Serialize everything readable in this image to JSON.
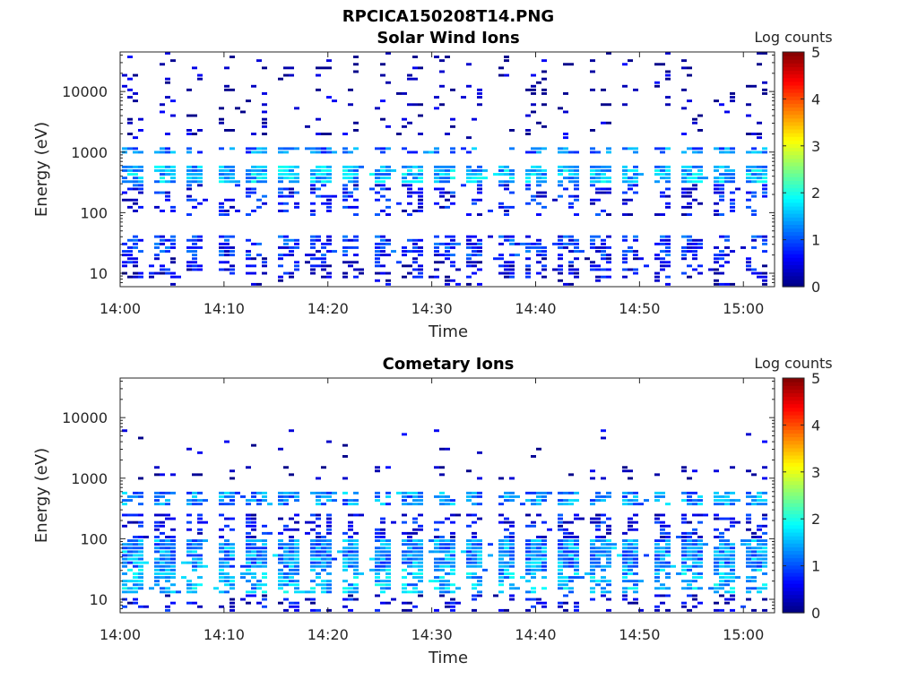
{
  "figure": {
    "title": "RPCICA150208T14.PNG"
  },
  "chart_data": [
    {
      "type": "heatmap",
      "title": "Solar Wind Ions",
      "xlabel": "Time",
      "ylabel": "Energy (eV)",
      "x_ticks": [
        "14:00",
        "14:10",
        "14:20",
        "14:30",
        "14:40",
        "14:50",
        "15:00"
      ],
      "x_range": [
        "14:00",
        "15:03"
      ],
      "y_scale": "log",
      "y_ticks": [
        "10",
        "100",
        "1000",
        "10000"
      ],
      "y_range": [
        6,
        45000
      ],
      "colorbar": {
        "label": "Log counts",
        "ticks": [
          "0",
          "1",
          "2",
          "3",
          "4",
          "5"
        ],
        "range": [
          0,
          5
        ],
        "colormap": "jet"
      },
      "sweep_period_min": 3,
      "bands": [
        {
          "e_min": 300,
          "e_max": 560,
          "log_counts_typical": 1.5,
          "coverage": 0.9
        },
        {
          "e_min": 900,
          "e_max": 1200,
          "log_counts_typical": 1.2,
          "coverage": 0.7
        },
        {
          "e_min": 180,
          "e_max": 300,
          "log_counts_typical": 0.7,
          "coverage": 0.45
        },
        {
          "e_min": 90,
          "e_max": 180,
          "log_counts_typical": 0.6,
          "coverage": 0.35
        },
        {
          "e_min": 18,
          "e_max": 45,
          "log_counts_typical": 0.8,
          "coverage": 0.6
        },
        {
          "e_min": 8,
          "e_max": 18,
          "log_counts_typical": 0.5,
          "coverage": 0.45
        },
        {
          "e_min": 6,
          "e_max": 8,
          "log_counts_typical": 0.3,
          "coverage": 0.15
        },
        {
          "e_min": 1500,
          "e_max": 45000,
          "log_counts_typical": 0.2,
          "coverage": 0.12
        }
      ]
    },
    {
      "type": "heatmap",
      "title": "Cometary Ions",
      "xlabel": "Time",
      "ylabel": "Energy (eV)",
      "x_ticks": [
        "14:00",
        "14:10",
        "14:20",
        "14:30",
        "14:40",
        "14:50",
        "15:00"
      ],
      "x_range": [
        "14:00",
        "15:03"
      ],
      "y_scale": "log",
      "y_ticks": [
        "10",
        "100",
        "1000",
        "10000"
      ],
      "y_range": [
        6,
        45000
      ],
      "colorbar": {
        "label": "Log counts",
        "ticks": [
          "0",
          "1",
          "2",
          "3",
          "4",
          "5"
        ],
        "range": [
          0,
          5
        ],
        "colormap": "jet"
      },
      "sweep_period_min": 3,
      "bands": [
        {
          "e_min": 30,
          "e_max": 95,
          "log_counts_typical": 1.3,
          "coverage": 0.95
        },
        {
          "e_min": 12,
          "e_max": 30,
          "log_counts_typical": 1.5,
          "coverage": 0.6
        },
        {
          "e_min": 6,
          "e_max": 12,
          "log_counts_typical": 0.5,
          "coverage": 0.35
        },
        {
          "e_min": 95,
          "e_max": 250,
          "log_counts_typical": 0.6,
          "coverage": 0.45
        },
        {
          "e_min": 350,
          "e_max": 560,
          "log_counts_typical": 1.3,
          "coverage": 0.75
        },
        {
          "e_min": 900,
          "e_max": 1600,
          "log_counts_typical": 0.2,
          "coverage": 0.12
        },
        {
          "e_min": 2000,
          "e_max": 6000,
          "log_counts_typical": 0.2,
          "coverage": 0.04
        }
      ]
    }
  ]
}
